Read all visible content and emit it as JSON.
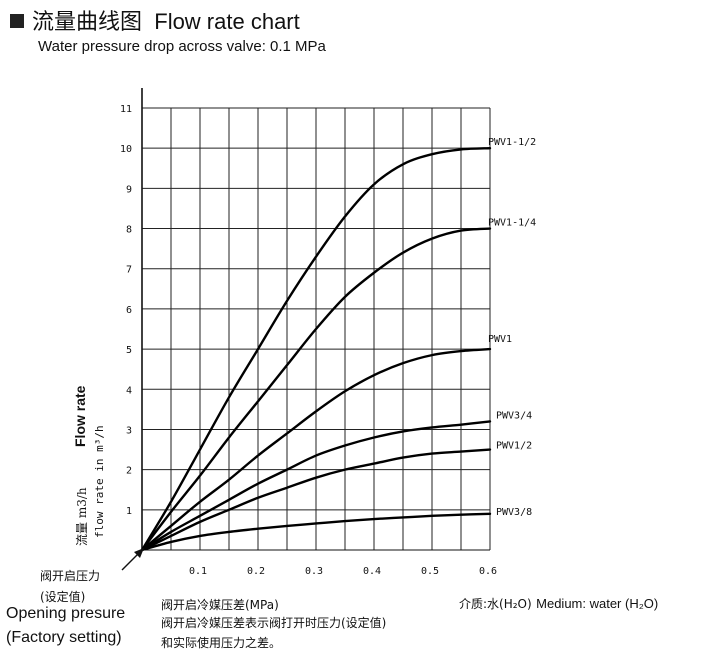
{
  "header": {
    "title_cn": "流量曲线图",
    "title_en": "Flow rate chart",
    "subtitle": "Water pressure drop across valve: 0.1 MPa"
  },
  "axes": {
    "y_label_cn": "流量 m3/h",
    "y_label_en": "Flow rate",
    "y_label_mono": "flow rate in m³/h",
    "x_label_cn": "阀开启冷媒压差(MPa)"
  },
  "notes": {
    "opening_cn": "阀开启压力",
    "setting_cn": "(设定值)",
    "opening_en": "Opening presure",
    "setting_en": "(Factory setting)",
    "explain_line1": "阀开启冷媒压差表示阀打开时压力(设定值)",
    "explain_line2": "和实际使用压力之差。",
    "medium_cn": "介质:水(H₂O)",
    "medium_en": "Medium: water (H₂O)"
  },
  "chart_data": {
    "type": "line",
    "title": "Flow rate chart",
    "subtitle": "Water pressure drop across valve: 0.1 MPa",
    "xlabel": "阀开启冷媒压差(MPa)",
    "ylabel": "流量 m3/h flow rate in m³/h",
    "xlim": [
      0,
      0.6
    ],
    "ylim": [
      0,
      11
    ],
    "x_ticks": [
      0.1,
      0.2,
      0.3,
      0.4,
      0.5,
      0.6
    ],
    "y_ticks": [
      1,
      2,
      3,
      4,
      5,
      6,
      7,
      8,
      9,
      10,
      11
    ],
    "grid": true,
    "series": [
      {
        "name": "PWV1-1/2",
        "x": [
          0,
          0.05,
          0.1,
          0.15,
          0.2,
          0.25,
          0.3,
          0.35,
          0.4,
          0.45,
          0.5,
          0.55,
          0.6
        ],
        "y": [
          0,
          1.2,
          2.5,
          3.8,
          5.0,
          6.2,
          7.3,
          8.3,
          9.1,
          9.6,
          9.85,
          9.97,
          10.0
        ]
      },
      {
        "name": "PWV1-1/4",
        "x": [
          0,
          0.05,
          0.1,
          0.15,
          0.2,
          0.25,
          0.3,
          0.35,
          0.4,
          0.45,
          0.5,
          0.55,
          0.6
        ],
        "y": [
          0,
          0.95,
          1.85,
          2.8,
          3.7,
          4.6,
          5.5,
          6.3,
          6.9,
          7.4,
          7.75,
          7.95,
          8.0
        ]
      },
      {
        "name": "PWV1",
        "x": [
          0,
          0.05,
          0.1,
          0.15,
          0.2,
          0.25,
          0.3,
          0.35,
          0.4,
          0.45,
          0.5,
          0.55,
          0.6
        ],
        "y": [
          0,
          0.6,
          1.2,
          1.75,
          2.35,
          2.9,
          3.45,
          3.95,
          4.35,
          4.65,
          4.85,
          4.95,
          5.0
        ]
      },
      {
        "name": "PWV3/4",
        "x": [
          0,
          0.05,
          0.1,
          0.15,
          0.2,
          0.25,
          0.3,
          0.35,
          0.4,
          0.45,
          0.5,
          0.55,
          0.6
        ],
        "y": [
          0,
          0.45,
          0.85,
          1.25,
          1.65,
          2.0,
          2.35,
          2.6,
          2.8,
          2.95,
          3.05,
          3.12,
          3.2
        ]
      },
      {
        "name": "PWV1/2",
        "x": [
          0,
          0.05,
          0.1,
          0.15,
          0.2,
          0.25,
          0.3,
          0.35,
          0.4,
          0.45,
          0.5,
          0.55,
          0.6
        ],
        "y": [
          0,
          0.35,
          0.7,
          1.0,
          1.3,
          1.55,
          1.8,
          2.0,
          2.15,
          2.3,
          2.4,
          2.45,
          2.5
        ]
      },
      {
        "name": "PWV3/8",
        "x": [
          0,
          0.05,
          0.1,
          0.15,
          0.2,
          0.25,
          0.3,
          0.35,
          0.4,
          0.45,
          0.5,
          0.55,
          0.6
        ],
        "y": [
          0,
          0.2,
          0.35,
          0.45,
          0.53,
          0.6,
          0.66,
          0.72,
          0.77,
          0.81,
          0.85,
          0.88,
          0.9
        ]
      }
    ]
  }
}
